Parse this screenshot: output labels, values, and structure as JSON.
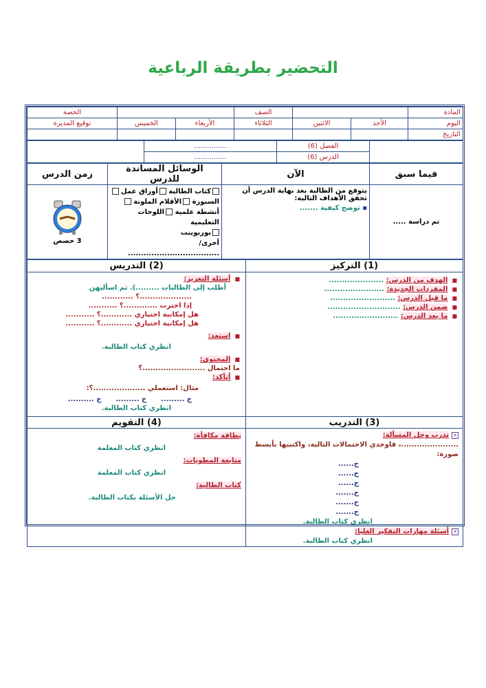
{
  "title": "التحضير بطريقة الرباعية",
  "header": {
    "subject": "المادة",
    "class": "الصف",
    "period": "الحصة",
    "day": "اليوم",
    "days": [
      "الأحد",
      "الاثنين",
      "الثلاثاء",
      "الأربعاء",
      "الخميس"
    ],
    "principal_signature": "توقيع المديرة",
    "date": "التاريخ",
    "chapter": "الفصل (6)",
    "lesson": "الدرس (6)",
    "chapter_value": "...............",
    "lesson_value": "..............."
  },
  "intro": {
    "previously_title": "فيما سبق",
    "now_title": "الآن",
    "aids_title": "الوسائل المساندة للدرس",
    "time_title": "زمن الدرس",
    "previously_text": "تم دراسة .....",
    "now_text": "يتوقع من الطالبة بعد نهاية الدرس أن تحقق الأهداف التالية:",
    "now_goal": "توضح كيفية .......",
    "aids": [
      "كتاب الطالبة",
      "أوراق عمل",
      "السبورة",
      "الأقلام الملونة",
      "أنشطة علمية",
      "اللوحات التعليمية",
      "بوربوينت"
    ],
    "aids_other": "أخرى/ ...................................",
    "time_value": "3 حصص"
  },
  "focus": {
    "title": "(1) التركيز",
    "items": [
      {
        "label": "الهدف من الدرس:",
        "value": "....................."
      },
      {
        "label": "المفردات الجديدة:",
        "value": "......................."
      },
      {
        "label": "ما قبل الدرس:",
        "value": "........................."
      },
      {
        "label": "ضمن الدرس:",
        "value": "............................"
      },
      {
        "label": "ما بعد الدرس:",
        "value": "........................."
      }
    ]
  },
  "teaching": {
    "title": "(2) التدريس",
    "reinforce_label": "أسئلة التعزيز:",
    "reinforce_lines": [
      "أطلب إلى الطالبات .........). ثم اسأليهن",
      "....................؟ ............",
      "إذا اخترت .............؟ ...........",
      "هل إمكانية اختياري ............؟ ...........",
      "هل إمكانية اختياري ............؟ ..........."
    ],
    "ready_label": "استعد:",
    "ready_text": "انظري كتاب الطالبة.",
    "content_label": "المحتوى:",
    "content_text": "ما احتمال ........................؟",
    "check_label": "أتأكد:",
    "check_example": "مثال: استعملي ....................؟:",
    "check_answers": "ح .........      ح .........      ح ..........",
    "check_ref": "انظري كتاب الطالبة."
  },
  "practice": {
    "title": "(3) التدريب",
    "problem_label": "تدرب وحل المسألة:",
    "problem_text": "......................، فاوجدي الاحتمالات التالية، واكتبيها بأبسط صورة:",
    "answers": [
      "ح......",
      "ح......",
      "ح......",
      "ح.......",
      "ح.......",
      "ح......."
    ],
    "ref": "انظري كتاب الطالبة.",
    "hots_label": "أسئلة مهارات التفكير العليا:",
    "hots_ref": "انظري كتاب الطالبة."
  },
  "assessment": {
    "title": "(4) التقويم",
    "bonus_label": "بطاقة مكافأة:",
    "bonus_text": "انظري كتاب المعلمة",
    "foldables_label": "متابعة المطويات:",
    "foldables_text": "انظري كتاب المعلمة",
    "book_label": "كتاب الطالبة:",
    "book_text": "حل الأسئلة بكتاب الطالبة."
  }
}
